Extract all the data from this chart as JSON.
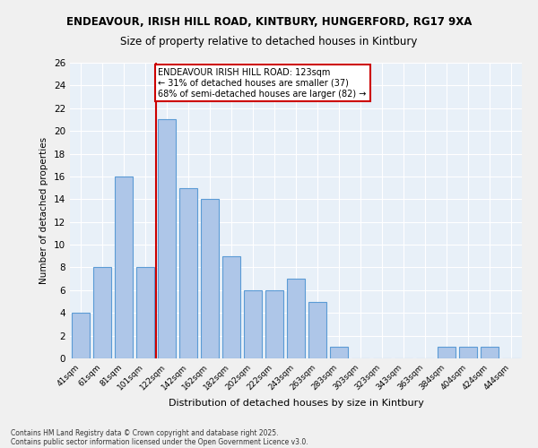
{
  "title1": "ENDEAVOUR, IRISH HILL ROAD, KINTBURY, HUNGERFORD, RG17 9XA",
  "title2": "Size of property relative to detached houses in Kintbury",
  "xlabel": "Distribution of detached houses by size in Kintbury",
  "ylabel": "Number of detached properties",
  "categories": [
    "41sqm",
    "61sqm",
    "81sqm",
    "101sqm",
    "122sqm",
    "142sqm",
    "162sqm",
    "182sqm",
    "202sqm",
    "222sqm",
    "243sqm",
    "263sqm",
    "283sqm",
    "303sqm",
    "323sqm",
    "343sqm",
    "363sqm",
    "384sqm",
    "404sqm",
    "424sqm",
    "444sqm"
  ],
  "values": [
    4,
    8,
    16,
    8,
    21,
    15,
    14,
    9,
    6,
    6,
    7,
    5,
    1,
    0,
    0,
    0,
    0,
    1,
    1,
    1,
    0
  ],
  "bar_color": "#aec6e8",
  "bar_edge_color": "#5b9bd5",
  "vline_color": "#cc0000",
  "vline_x_index": 3.5,
  "annotation_lines": [
    "ENDEAVOUR IRISH HILL ROAD: 123sqm",
    "← 31% of detached houses are smaller (37)",
    "68% of semi-detached houses are larger (82) →"
  ],
  "annotation_box_color": "#ffffff",
  "annotation_box_edge_color": "#cc0000",
  "ylim": [
    0,
    26
  ],
  "yticks": [
    0,
    2,
    4,
    6,
    8,
    10,
    12,
    14,
    16,
    18,
    20,
    22,
    24,
    26
  ],
  "background_color": "#e8f0f8",
  "fig_background_color": "#f0f0f0",
  "footnote1": "Contains HM Land Registry data © Crown copyright and database right 2025.",
  "footnote2": "Contains public sector information licensed under the Open Government Licence v3.0."
}
